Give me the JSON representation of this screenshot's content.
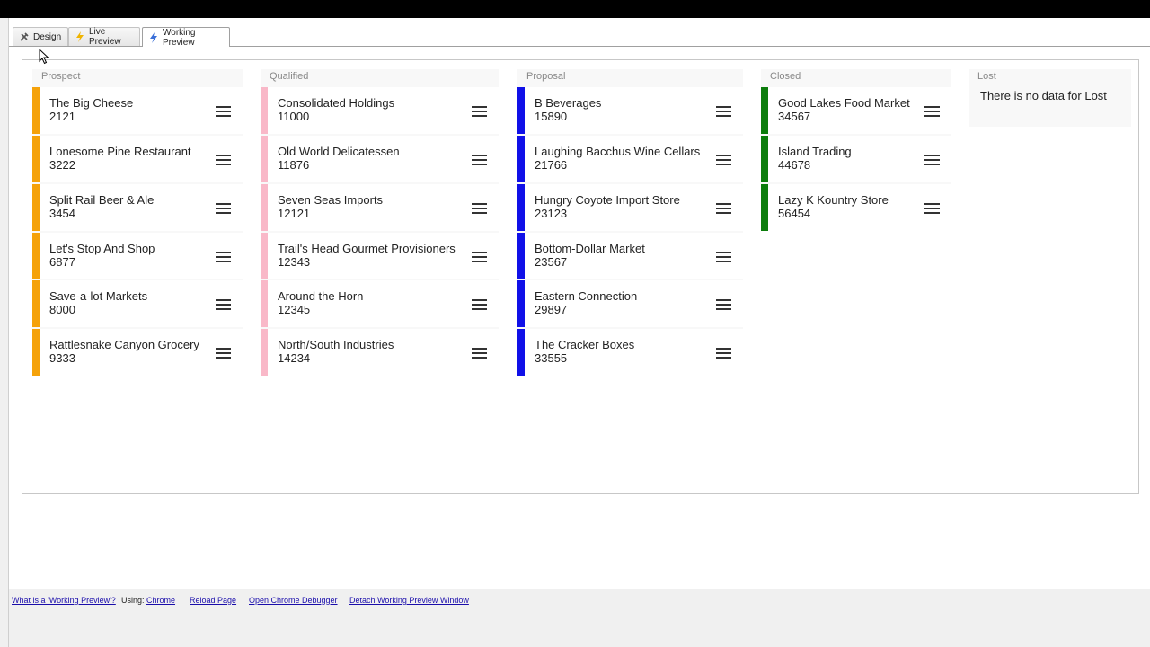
{
  "tabs": [
    {
      "label": "Design",
      "icon": "tools-icon"
    },
    {
      "label": "Live Preview",
      "icon": "lightning-icon"
    },
    {
      "label": "Working Preview",
      "icon": "lightning-icon"
    }
  ],
  "colors": {
    "prospect": "#f5a20a",
    "qualified": "#f9b8c8",
    "proposal": "#1010e8",
    "closed": "#0c7d0c"
  },
  "columns": {
    "prospect": {
      "title": "Prospect",
      "cards": [
        {
          "name": "The Big Cheese",
          "value": "2121"
        },
        {
          "name": "Lonesome Pine Restaurant",
          "value": "3222"
        },
        {
          "name": "Split Rail Beer & Ale",
          "value": "3454"
        },
        {
          "name": "Let's Stop And Shop",
          "value": "6877"
        },
        {
          "name": "Save-a-lot Markets",
          "value": "8000"
        },
        {
          "name": "Rattlesnake Canyon Grocery",
          "value": "9333"
        }
      ]
    },
    "qualified": {
      "title": "Qualified",
      "cards": [
        {
          "name": "Consolidated Holdings",
          "value": "11000"
        },
        {
          "name": "Old World Delicatessen",
          "value": "11876"
        },
        {
          "name": "Seven Seas Imports",
          "value": "12121"
        },
        {
          "name": "Trail's Head Gourmet Provisioners",
          "value": "12343"
        },
        {
          "name": "Around the Horn",
          "value": "12345"
        },
        {
          "name": "North/South Industries",
          "value": "14234"
        }
      ]
    },
    "proposal": {
      "title": "Proposal",
      "cards": [
        {
          "name": "B Beverages",
          "value": "15890"
        },
        {
          "name": "Laughing Bacchus Wine Cellars",
          "value": "21766"
        },
        {
          "name": "Hungry Coyote Import Store",
          "value": "23123"
        },
        {
          "name": "Bottom-Dollar Market",
          "value": "23567"
        },
        {
          "name": "Eastern Connection",
          "value": "29897"
        },
        {
          "name": "The Cracker Boxes",
          "value": "33555"
        }
      ]
    },
    "closed": {
      "title": "Closed",
      "cards": [
        {
          "name": "Good Lakes Food Market",
          "value": "34567"
        },
        {
          "name": "Island Trading",
          "value": "44678"
        },
        {
          "name": "Lazy K Kountry Store",
          "value": "56454"
        }
      ]
    },
    "lost": {
      "title": "Lost",
      "empty_text": "There is no data for Lost"
    }
  },
  "footer": {
    "what_is": "What is a 'Working Preview'?",
    "using_label": "Using:",
    "browser": "Chrome",
    "reload": "Reload Page",
    "debugger": "Open Chrome Debugger",
    "detach": "Detach Working Preview Window"
  }
}
